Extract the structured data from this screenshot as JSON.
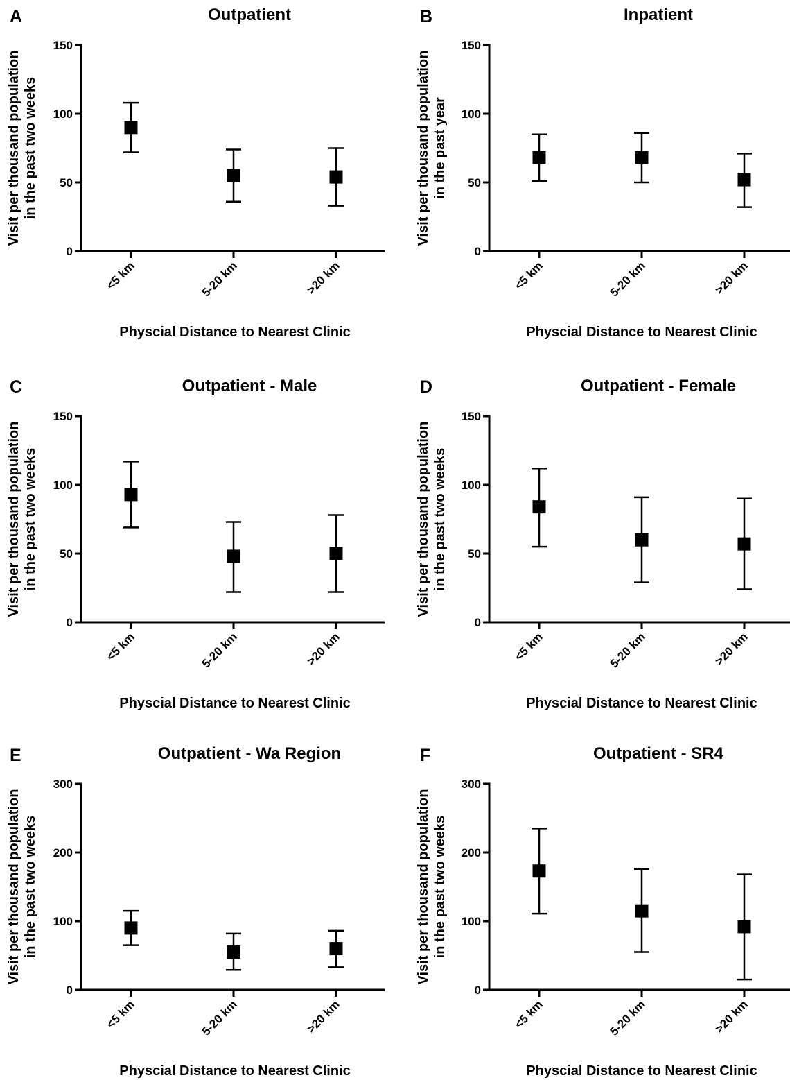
{
  "chart_data": [
    {
      "type": "scatter",
      "panel": "A",
      "title": "Outpatient",
      "xlabel": "Physcial Distance to Nearest Clinic",
      "ylabel": [
        "Visit per thousand population",
        "in the past two weeks"
      ],
      "categories": [
        "<5 km",
        "5-20 km",
        ">20 km"
      ],
      "ylim": [
        0,
        150
      ],
      "yticks": [
        0,
        50,
        100,
        150
      ],
      "series": [
        {
          "values": [
            90,
            55,
            54
          ],
          "lower": [
            72,
            36,
            33
          ],
          "upper": [
            108,
            74,
            75
          ]
        }
      ]
    },
    {
      "type": "scatter",
      "panel": "B",
      "title": "Inpatient",
      "xlabel": "Physcial Distance to Nearest Clinic",
      "ylabel": [
        "Visit per thousand population",
        "in the past year"
      ],
      "categories": [
        "<5 km",
        "5-20 km",
        ">20 km"
      ],
      "ylim": [
        0,
        150
      ],
      "yticks": [
        0,
        50,
        100,
        150
      ],
      "series": [
        {
          "values": [
            68,
            68,
            52
          ],
          "lower": [
            51,
            50,
            32
          ],
          "upper": [
            85,
            86,
            71
          ]
        }
      ]
    },
    {
      "type": "scatter",
      "panel": "C",
      "title": "Outpatient - Male",
      "xlabel": "Physcial Distance to Nearest Clinic",
      "ylabel": [
        "Visit per thousand population",
        "in the past two weeks"
      ],
      "categories": [
        "<5 km",
        "5-20 km",
        ">20 km"
      ],
      "ylim": [
        0,
        150
      ],
      "yticks": [
        0,
        50,
        100,
        150
      ],
      "series": [
        {
          "values": [
            93,
            48,
            50
          ],
          "lower": [
            69,
            22,
            22
          ],
          "upper": [
            117,
            73,
            78
          ]
        }
      ]
    },
    {
      "type": "scatter",
      "panel": "D",
      "title": "Outpatient - Female",
      "xlabel": "Physcial Distance to Nearest Clinic",
      "ylabel": [
        "Visit per thousand population",
        "in the past two weeks"
      ],
      "categories": [
        "<5 km",
        "5-20 km",
        ">20 km"
      ],
      "ylim": [
        0,
        150
      ],
      "yticks": [
        0,
        50,
        100,
        150
      ],
      "series": [
        {
          "values": [
            84,
            60,
            57
          ],
          "lower": [
            55,
            29,
            24
          ],
          "upper": [
            112,
            91,
            90
          ]
        }
      ]
    },
    {
      "type": "scatter",
      "panel": "E",
      "title": "Outpatient - Wa Region",
      "xlabel": "Physcial Distance to Nearest Clinic",
      "ylabel": [
        "Visit per thousand population",
        "in the past two weeks"
      ],
      "categories": [
        "<5 km",
        "5-20 km",
        ">20 km"
      ],
      "ylim": [
        0,
        300
      ],
      "yticks": [
        0,
        100,
        200,
        300
      ],
      "series": [
        {
          "values": [
            90,
            55,
            60
          ],
          "lower": [
            65,
            29,
            33
          ],
          "upper": [
            115,
            82,
            86
          ]
        }
      ]
    },
    {
      "type": "scatter",
      "panel": "F",
      "title": "Outpatient - SR4",
      "xlabel": "Physcial Distance to Nearest Clinic",
      "ylabel": [
        "Visit per thousand population",
        "in the past two weeks"
      ],
      "categories": [
        "<5 km",
        "5-20 km",
        ">20 km"
      ],
      "ylim": [
        0,
        300
      ],
      "yticks": [
        0,
        100,
        200,
        300
      ],
      "series": [
        {
          "values": [
            173,
            115,
            92
          ],
          "lower": [
            111,
            55,
            15
          ],
          "upper": [
            235,
            176,
            168
          ]
        }
      ]
    }
  ]
}
